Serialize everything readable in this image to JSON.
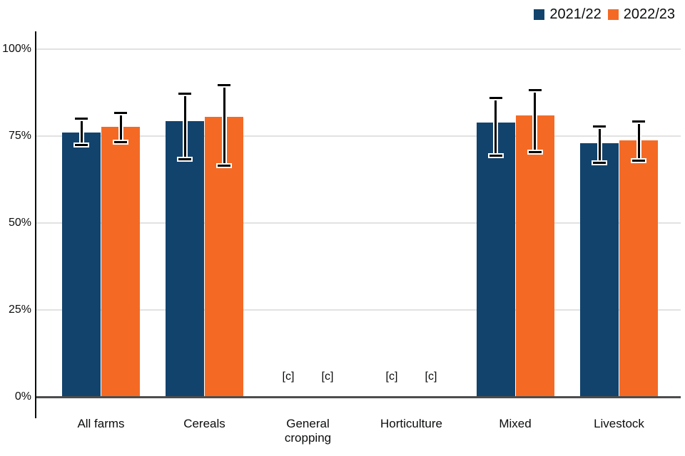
{
  "chart_data": {
    "type": "bar",
    "title": "",
    "xlabel": "",
    "ylabel": "",
    "y_unit": "%",
    "ylim": [
      0,
      100
    ],
    "grid": true,
    "legend_position": "top-right",
    "error_bars": true,
    "suppressed_label": "[c]",
    "yticks": [
      0,
      25,
      50,
      75,
      100
    ],
    "ytick_labels": [
      "0%",
      "25%",
      "50%",
      "75%",
      "100%"
    ],
    "categories": [
      "All farms",
      "Cereals",
      "General cropping",
      "Horticulture",
      "Mixed",
      "Livestock"
    ],
    "series": [
      {
        "name": "2021/22",
        "color": "#12436D",
        "values": [
          76.1,
          79.3,
          null,
          null,
          78.8,
          73.0
        ],
        "error_low": [
          72.4,
          68.4,
          null,
          null,
          69.4,
          67.4
        ],
        "error_high": [
          80.1,
          87.2,
          null,
          null,
          85.9,
          77.8
        ]
      },
      {
        "name": "2022/23",
        "color": "#F46A25",
        "values": [
          77.7,
          80.6,
          null,
          null,
          80.9,
          73.7
        ],
        "error_low": [
          73.3,
          66.5,
          null,
          null,
          70.3,
          67.9
        ],
        "error_high": [
          81.6,
          89.7,
          null,
          null,
          88.3,
          79.1
        ]
      }
    ]
  }
}
